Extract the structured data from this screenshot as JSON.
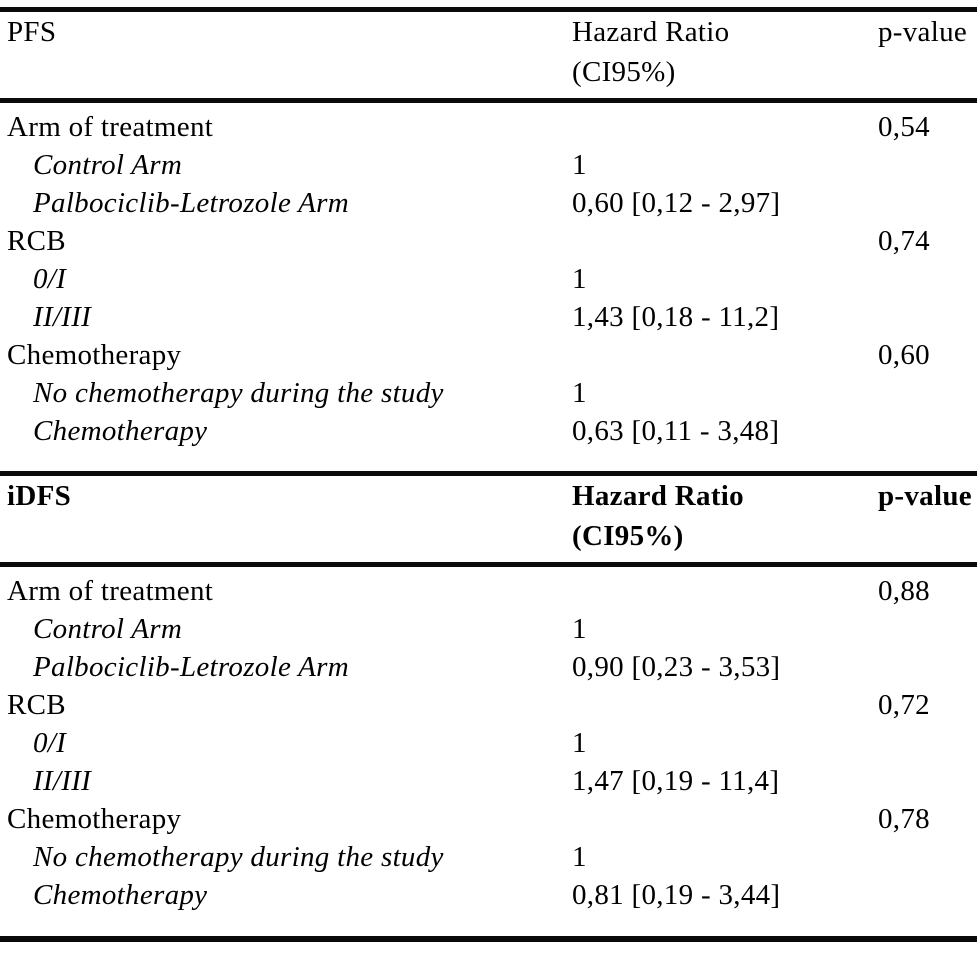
{
  "page": {
    "background_color": "#ffffff",
    "text_color": "#000000",
    "rule_color": "#0a0a0a"
  },
  "table": {
    "sections": [
      {
        "name": "PFS",
        "header": {
          "title": "PFS",
          "hazard_ratio_line1": "Hazard Ratio",
          "hazard_ratio_line2": "(CI95%)",
          "p_value": "p-value"
        },
        "rows": [
          {
            "label": "Arm of treatment",
            "hazard_ratio": "",
            "p_value": "0,54"
          },
          {
            "label": "Control Arm",
            "hazard_ratio": "1",
            "p_value": ""
          },
          {
            "label": "Palbociclib-Letrozole Arm",
            "hazard_ratio": "0,60 [0,12 - 2,97]",
            "p_value": ""
          },
          {
            "label": "RCB",
            "hazard_ratio": "",
            "p_value": "0,74"
          },
          {
            "label": "0/I",
            "hazard_ratio": "1",
            "p_value": ""
          },
          {
            "label": "II/III",
            "hazard_ratio": "1,43 [0,18 - 11,2]",
            "p_value": ""
          },
          {
            "label": "Chemotherapy",
            "hazard_ratio": "",
            "p_value": "0,60"
          },
          {
            "label": "No chemotherapy during the study",
            "hazard_ratio": "1",
            "p_value": ""
          },
          {
            "label": "Chemotherapy",
            "hazard_ratio": "0,63 [0,11 - 3,48]",
            "p_value": ""
          }
        ]
      },
      {
        "name": "iDFS",
        "header": {
          "title": "iDFS",
          "hazard_ratio_line1": "Hazard Ratio",
          "hazard_ratio_line2": "(CI95%)",
          "p_value": "p-value"
        },
        "rows": [
          {
            "label": "Arm of treatment",
            "hazard_ratio": "",
            "p_value": "0,88"
          },
          {
            "label": "Control Arm",
            "hazard_ratio": "1",
            "p_value": ""
          },
          {
            "label": "Palbociclib-Letrozole Arm",
            "hazard_ratio": "0,90 [0,23 - 3,53]",
            "p_value": ""
          },
          {
            "label": "RCB",
            "hazard_ratio": "",
            "p_value": "0,72"
          },
          {
            "label": "0/I",
            "hazard_ratio": "1",
            "p_value": ""
          },
          {
            "label": "II/III",
            "hazard_ratio": "1,47 [0,19 - 11,4]",
            "p_value": ""
          },
          {
            "label": "Chemotherapy",
            "hazard_ratio": "",
            "p_value": "0,78"
          },
          {
            "label": "No chemotherapy during the study",
            "hazard_ratio": "1",
            "p_value": ""
          },
          {
            "label": "Chemotherapy",
            "hazard_ratio": "0,81 [0,19 - 3,44]",
            "p_value": ""
          }
        ]
      }
    ]
  }
}
